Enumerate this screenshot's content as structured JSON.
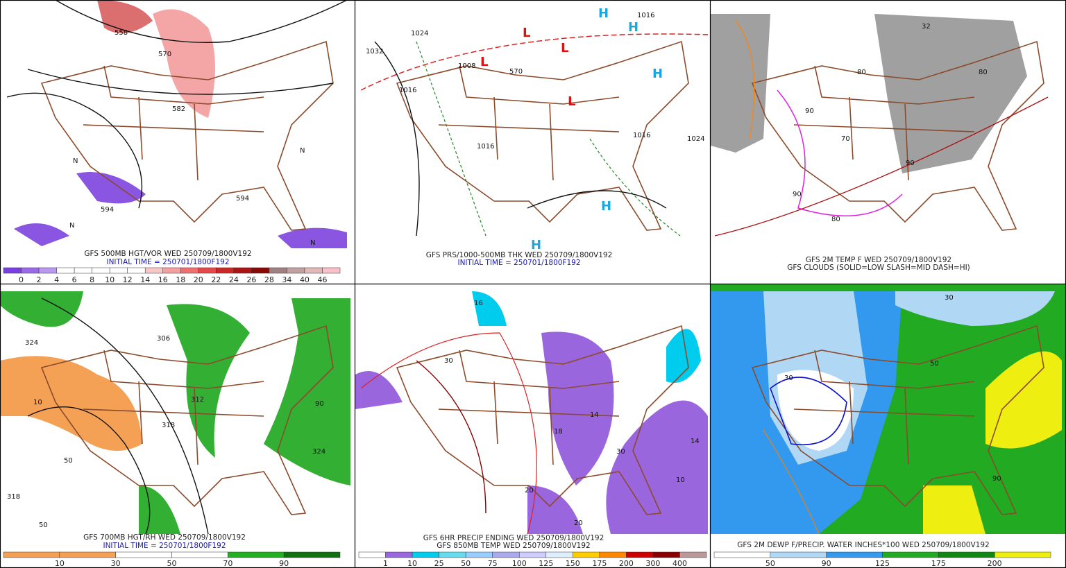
{
  "panels": [
    {
      "caption": [
        "GFS 500MB HGT/VOR WED 250709/1800V192",
        "INITIAL TIME = 250701/1800F192"
      ],
      "colorbar": {
        "labels": [
          "0",
          "2",
          "4",
          "6",
          "8",
          "10",
          "12",
          "14",
          "16",
          "18",
          "20",
          "22",
          "24",
          "26",
          "28",
          "34",
          "40",
          "46"
        ],
        "colors": [
          "#7a3fe0",
          "#9a6ae8",
          "#b898f0",
          "#ffffff",
          "#ffffff",
          "#ffffff",
          "#ffffff",
          "#ffffff",
          "#f8c8c8",
          "#f4a0a0",
          "#ee7070",
          "#e44848",
          "#cc2828",
          "#aa1414",
          "#880808",
          "#a08080",
          "#c0a0a0",
          "#e0b8b8",
          "#f8c0c8"
        ]
      },
      "map_labels": [
        "558",
        "570",
        "582",
        "594",
        "594",
        "N",
        "N",
        "N",
        "N"
      ]
    },
    {
      "caption": [
        "GFS PRS/1000-500MB THK WED 250709/1800V192",
        "INITIAL TIME = 250701/1800F192"
      ],
      "map_labels": [
        "1024",
        "1032",
        "1016",
        "1008",
        "1016",
        "1016",
        "1024",
        "1016",
        "570",
        "L",
        "L",
        "L",
        "L",
        "H",
        "H",
        "H",
        "H",
        "H"
      ]
    },
    {
      "caption": [
        "GFS 2M TEMP F WED 250709/1800V192",
        "GFS CLOUDS (SOLID=LOW SLASH=MID DASH=HI)"
      ],
      "map_labels": [
        "32",
        "80",
        "90",
        "80",
        "90",
        "70",
        "90",
        "80"
      ]
    },
    {
      "caption": [
        "GFS 700MB HGT/RH WED 250709/1800V192",
        "INITIAL TIME = 250701/1800F192"
      ],
      "colorbar": {
        "labels": [
          "10",
          "30",
          "50",
          "70",
          "90"
        ],
        "colors": [
          "#f4a055",
          "#f4a055",
          "#ffffff",
          "#ffffff",
          "#22b022",
          "#107010"
        ]
      },
      "map_labels": [
        "324",
        "306",
        "312",
        "318",
        "318",
        "10",
        "50",
        "50",
        "90",
        "324"
      ]
    },
    {
      "caption": [
        "GFS 6HR PRECIP ENDING WED 250709/1800V192",
        "GFS 850MB TEMP WED 250709/1800V192"
      ],
      "colorbar": {
        "labels": [
          "1",
          "10",
          "25",
          "50",
          "75",
          "100",
          "125",
          "150",
          "175",
          "200",
          "300",
          "400"
        ],
        "colors": [
          "#ffffff",
          "#9966dd",
          "#00ccee",
          "#66ddee",
          "#99ccff",
          "#aaaaee",
          "#ccccff",
          "#ddeeff",
          "#ffcc00",
          "#ff8800",
          "#cc0000",
          "#880000",
          "#bb9999"
        ]
      },
      "map_labels": [
        "16",
        "14",
        "18",
        "14",
        "10",
        "20",
        "30",
        "30",
        "20"
      ]
    },
    {
      "caption": [
        "GFS 2M DEWP F/PRECIP. WATER INCHES*100 WED 250709/1800V192"
      ],
      "colorbar": {
        "labels": [
          "50",
          "90",
          "125",
          "175",
          "200"
        ],
        "colors": [
          "#ffffff",
          "#b0d8f4",
          "#3399ee",
          "#22aa22",
          "#118811",
          "#eeee11"
        ]
      },
      "map_labels": [
        "30",
        "50",
        "30",
        "90"
      ]
    }
  ]
}
